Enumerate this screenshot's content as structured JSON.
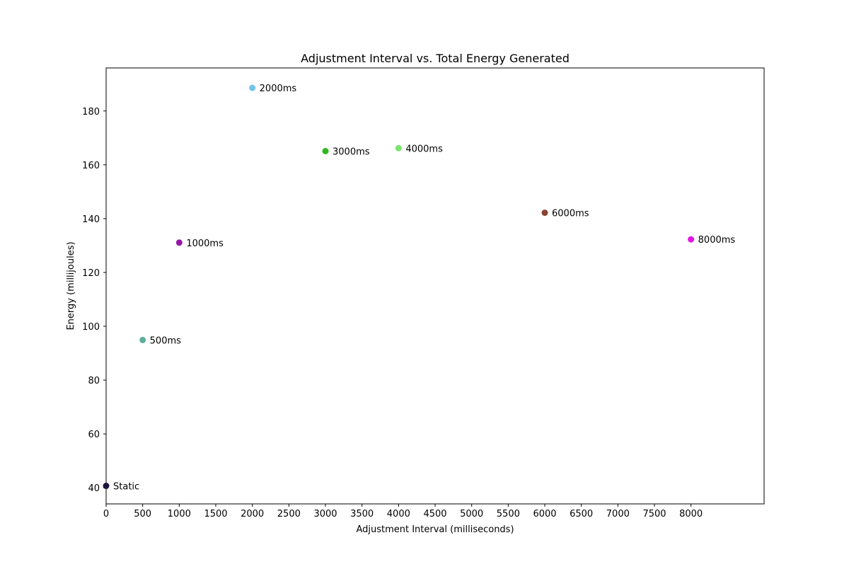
{
  "chart_data": {
    "type": "scatter",
    "title": "Adjustment Interval vs. Total Energy Generated",
    "xlabel": "Adjustment Interval (milliseconds)",
    "ylabel": "Energy (millijoules)",
    "xlim": [
      0,
      9000
    ],
    "ylim": [
      34,
      196
    ],
    "xticks": [
      0,
      500,
      1000,
      1500,
      2000,
      2500,
      3000,
      3500,
      4000,
      4500,
      5000,
      5500,
      6000,
      6500,
      7000,
      7500,
      8000
    ],
    "yticks": [
      40,
      60,
      80,
      100,
      120,
      140,
      160,
      180
    ],
    "grid": false,
    "legend": false,
    "points": [
      {
        "label": "Static",
        "x": 0,
        "y": 40.7,
        "color": "#1f1440"
      },
      {
        "label": "500ms",
        "x": 500,
        "y": 94.9,
        "color": "#5fae9c"
      },
      {
        "label": "1000ms",
        "x": 1000,
        "y": 131.1,
        "color": "#9419a8"
      },
      {
        "label": "2000ms",
        "x": 2000,
        "y": 188.6,
        "color": "#74c2ee"
      },
      {
        "label": "3000ms",
        "x": 3000,
        "y": 165.1,
        "color": "#2fb71e"
      },
      {
        "label": "4000ms",
        "x": 4000,
        "y": 166.2,
        "color": "#7ae56e"
      },
      {
        "label": "6000ms",
        "x": 6000,
        "y": 142.2,
        "color": "#8b4335"
      },
      {
        "label": "8000ms",
        "x": 8000,
        "y": 132.3,
        "color": "#e612e3"
      }
    ]
  }
}
